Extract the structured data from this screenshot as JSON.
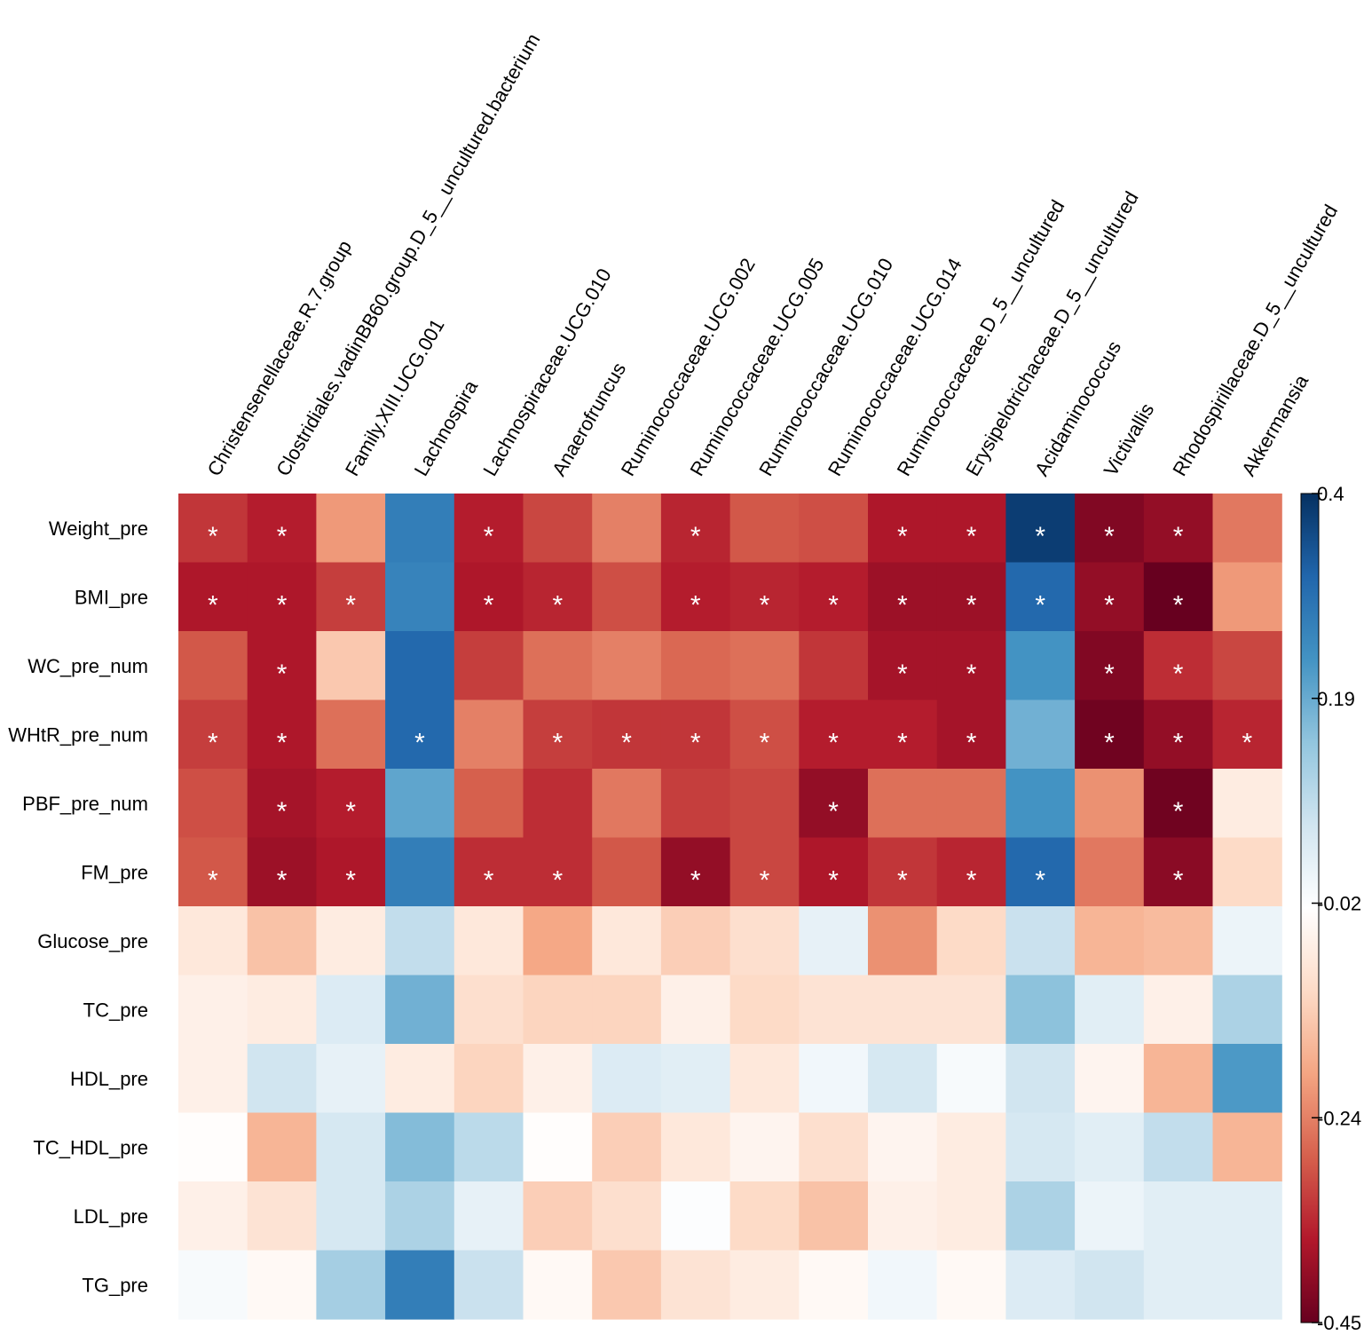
{
  "chart_data": {
    "type": "heatmap",
    "title": "",
    "columns": [
      "Christensenellaceae.R.7.group",
      "Clostridiales.vadinBB60.group.D_5__uncultured.bacterium",
      "Family.XIII.UCG.001",
      "Lachnospira",
      "Lachnospiraceae.UCG.010",
      "Anaerofruncus",
      "Ruminococcaceae.UCG.002",
      "Ruminococcaceae.UCG.005",
      "Ruminococcaceae.UCG.010",
      "Ruminococcaceae.UCG.014",
      "Ruminococcaceae.D_5__uncultured",
      "Erysipelotrichaceae.D_5__uncultured",
      "Acidaminococcus",
      "Victivallis",
      "Rhodospirillaceae.D_5__uncultured",
      "Akkermansia"
    ],
    "rows": [
      "Weight_pre",
      "BMI_pre",
      "WC_pre_num",
      "WHtR_pre_num",
      "PBF_pre_num",
      "FM_pre",
      "Glucose_pre",
      "TC_pre",
      "HDL_pre",
      "TC_HDL_pre",
      "LDL_pre",
      "TG_pre"
    ],
    "values": [
      [
        -0.33,
        -0.36,
        -0.21,
        0.27,
        -0.36,
        -0.31,
        -0.24,
        -0.35,
        -0.29,
        -0.3,
        -0.37,
        -0.37,
        0.38,
        -0.42,
        -0.4,
        -0.25
      ],
      [
        -0.37,
        -0.37,
        -0.32,
        0.26,
        -0.37,
        -0.35,
        -0.3,
        -0.36,
        -0.35,
        -0.36,
        -0.39,
        -0.39,
        0.31,
        -0.4,
        -0.45,
        -0.21
      ],
      [
        -0.29,
        -0.37,
        -0.14,
        0.31,
        -0.32,
        -0.26,
        -0.24,
        -0.27,
        -0.26,
        -0.33,
        -0.38,
        -0.38,
        0.23,
        -0.42,
        -0.34,
        -0.31
      ],
      [
        -0.32,
        -0.37,
        -0.26,
        0.31,
        -0.24,
        -0.32,
        -0.33,
        -0.33,
        -0.3,
        -0.36,
        -0.36,
        -0.38,
        0.18,
        -0.44,
        -0.4,
        -0.35
      ],
      [
        -0.3,
        -0.38,
        -0.36,
        0.2,
        -0.28,
        -0.34,
        -0.25,
        -0.32,
        -0.31,
        -0.4,
        -0.26,
        -0.26,
        0.23,
        -0.22,
        -0.44,
        -0.07
      ],
      [
        -0.29,
        -0.39,
        -0.37,
        0.27,
        -0.34,
        -0.34,
        -0.29,
        -0.4,
        -0.31,
        -0.37,
        -0.33,
        -0.35,
        0.31,
        -0.25,
        -0.41,
        -0.11
      ],
      [
        -0.08,
        -0.15,
        -0.07,
        0.08,
        -0.08,
        -0.19,
        -0.08,
        -0.13,
        -0.1,
        0.02,
        -0.22,
        -0.11,
        0.07,
        -0.17,
        -0.16,
        0.01
      ],
      [
        -0.06,
        -0.07,
        0.04,
        0.18,
        -0.1,
        -0.12,
        -0.12,
        -0.06,
        -0.11,
        -0.09,
        -0.09,
        -0.09,
        0.15,
        0.03,
        -0.06,
        0.11
      ],
      [
        -0.06,
        0.06,
        0.02,
        -0.07,
        -0.12,
        -0.06,
        0.04,
        0.03,
        -0.08,
        0.0,
        0.05,
        -0.01,
        0.06,
        -0.05,
        -0.17,
        0.22
      ],
      [
        -0.03,
        -0.17,
        0.05,
        0.16,
        0.09,
        -0.03,
        -0.13,
        -0.08,
        -0.05,
        -0.1,
        -0.05,
        -0.07,
        0.05,
        0.03,
        0.08,
        -0.17
      ],
      [
        -0.06,
        -0.09,
        0.05,
        0.11,
        0.02,
        -0.13,
        -0.1,
        -0.02,
        -0.11,
        -0.15,
        -0.06,
        -0.07,
        0.11,
        0.01,
        0.03,
        0.03
      ],
      [
        -0.01,
        -0.04,
        0.12,
        0.27,
        0.07,
        -0.04,
        -0.14,
        -0.09,
        -0.07,
        -0.04,
        0.0,
        -0.04,
        0.04,
        0.06,
        0.03,
        0.03
      ]
    ],
    "significance": [
      [
        1,
        1,
        0,
        0,
        1,
        0,
        0,
        1,
        0,
        0,
        1,
        1,
        1,
        1,
        1,
        0
      ],
      [
        1,
        1,
        1,
        0,
        1,
        1,
        0,
        1,
        1,
        1,
        1,
        1,
        1,
        1,
        1,
        0
      ],
      [
        0,
        1,
        0,
        0,
        0,
        0,
        0,
        0,
        0,
        0,
        1,
        1,
        0,
        1,
        1,
        0
      ],
      [
        1,
        1,
        0,
        1,
        0,
        1,
        1,
        1,
        1,
        1,
        1,
        1,
        0,
        1,
        1,
        1
      ],
      [
        0,
        1,
        1,
        0,
        0,
        0,
        0,
        0,
        0,
        1,
        0,
        0,
        0,
        0,
        1,
        0
      ],
      [
        1,
        1,
        1,
        0,
        1,
        1,
        0,
        1,
        1,
        1,
        1,
        1,
        1,
        0,
        1,
        0
      ],
      [
        0,
        0,
        0,
        0,
        0,
        0,
        0,
        0,
        0,
        0,
        0,
        0,
        0,
        0,
        0,
        0
      ],
      [
        0,
        0,
        0,
        0,
        0,
        0,
        0,
        0,
        0,
        0,
        0,
        0,
        0,
        0,
        0,
        0
      ],
      [
        0,
        0,
        0,
        0,
        0,
        0,
        0,
        0,
        0,
        0,
        0,
        0,
        0,
        0,
        0,
        0
      ],
      [
        0,
        0,
        0,
        0,
        0,
        0,
        0,
        0,
        0,
        0,
        0,
        0,
        0,
        0,
        0,
        0
      ],
      [
        0,
        0,
        0,
        0,
        0,
        0,
        0,
        0,
        0,
        0,
        0,
        0,
        0,
        0,
        0,
        0
      ],
      [
        0,
        0,
        0,
        0,
        0,
        0,
        0,
        0,
        0,
        0,
        0,
        0,
        0,
        0,
        0,
        0
      ]
    ],
    "significance_marker": "*",
    "color_range": [
      -0.45,
      0.4
    ],
    "colorbar_ticks": [
      {
        "value": 0.4,
        "label": "0.4"
      },
      {
        "value": 0.19,
        "label": "0.19"
      },
      {
        "value": -0.02,
        "label": "-0.02"
      },
      {
        "value": -0.24,
        "label": "-0.24"
      },
      {
        "value": -0.45,
        "label": "-0.45"
      }
    ],
    "palette": [
      "#67001f",
      "#b2182b",
      "#d6604d",
      "#f4a582",
      "#fddbc7",
      "#ffffff",
      "#d1e5f0",
      "#92c5de",
      "#4393c3",
      "#2166ac",
      "#053061"
    ]
  }
}
